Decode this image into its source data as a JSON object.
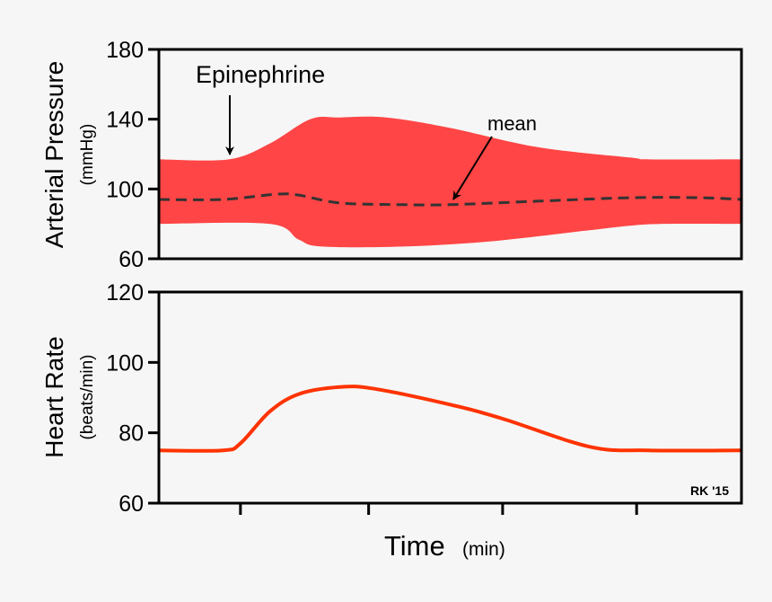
{
  "chart_data": [
    {
      "type": "area",
      "ylabel": "Arterial Pressure",
      "yunit": "(mmHg)",
      "ylim": [
        60,
        180
      ],
      "yticks": [
        60,
        100,
        140,
        180
      ],
      "xlim": [
        0,
        100
      ],
      "band_color": "#ff4545",
      "upper": {
        "x": [
          0,
          12,
          19,
          26,
          31,
          39,
          50,
          65,
          81,
          84,
          100
        ],
        "y": [
          117,
          117,
          126,
          140,
          141,
          141,
          135,
          124,
          118,
          117,
          117
        ]
      },
      "lower": {
        "x": [
          0,
          19,
          24,
          28,
          42,
          57,
          73,
          81,
          87,
          100
        ],
        "y": [
          80,
          80,
          71,
          67,
          67,
          70,
          76,
          79,
          80,
          80
        ]
      },
      "mean": {
        "x": [
          0,
          11,
          20,
          24,
          31,
          42,
          50,
          65,
          81,
          93,
          100
        ],
        "y": [
          94,
          94,
          97,
          96.5,
          92,
          91,
          91,
          93,
          95,
          95,
          94
        ],
        "color": "#333333",
        "style": "dashed"
      },
      "annotations": [
        {
          "text": "Epinephrine"
        },
        {
          "text": "mean"
        }
      ]
    },
    {
      "type": "line",
      "ylabel": "Heart Rate",
      "yunit": "(beats/min)",
      "ylim": [
        60,
        120
      ],
      "yticks": [
        60,
        80,
        100,
        120
      ],
      "xlim": [
        0,
        100
      ],
      "xlabel": "Time",
      "xunit": "(min)",
      "xticks": [
        14,
        36,
        59,
        82
      ],
      "line_color": "#ff3300",
      "series": [
        {
          "x": [
            0,
            11,
            14,
            19,
            24,
            31,
            37,
            50,
            59,
            74,
            84,
            100
          ],
          "y": [
            75,
            75,
            77,
            86,
            91,
            93,
            92.5,
            88,
            84,
            76,
            75,
            75
          ]
        }
      ],
      "credit": "RK '15"
    }
  ]
}
